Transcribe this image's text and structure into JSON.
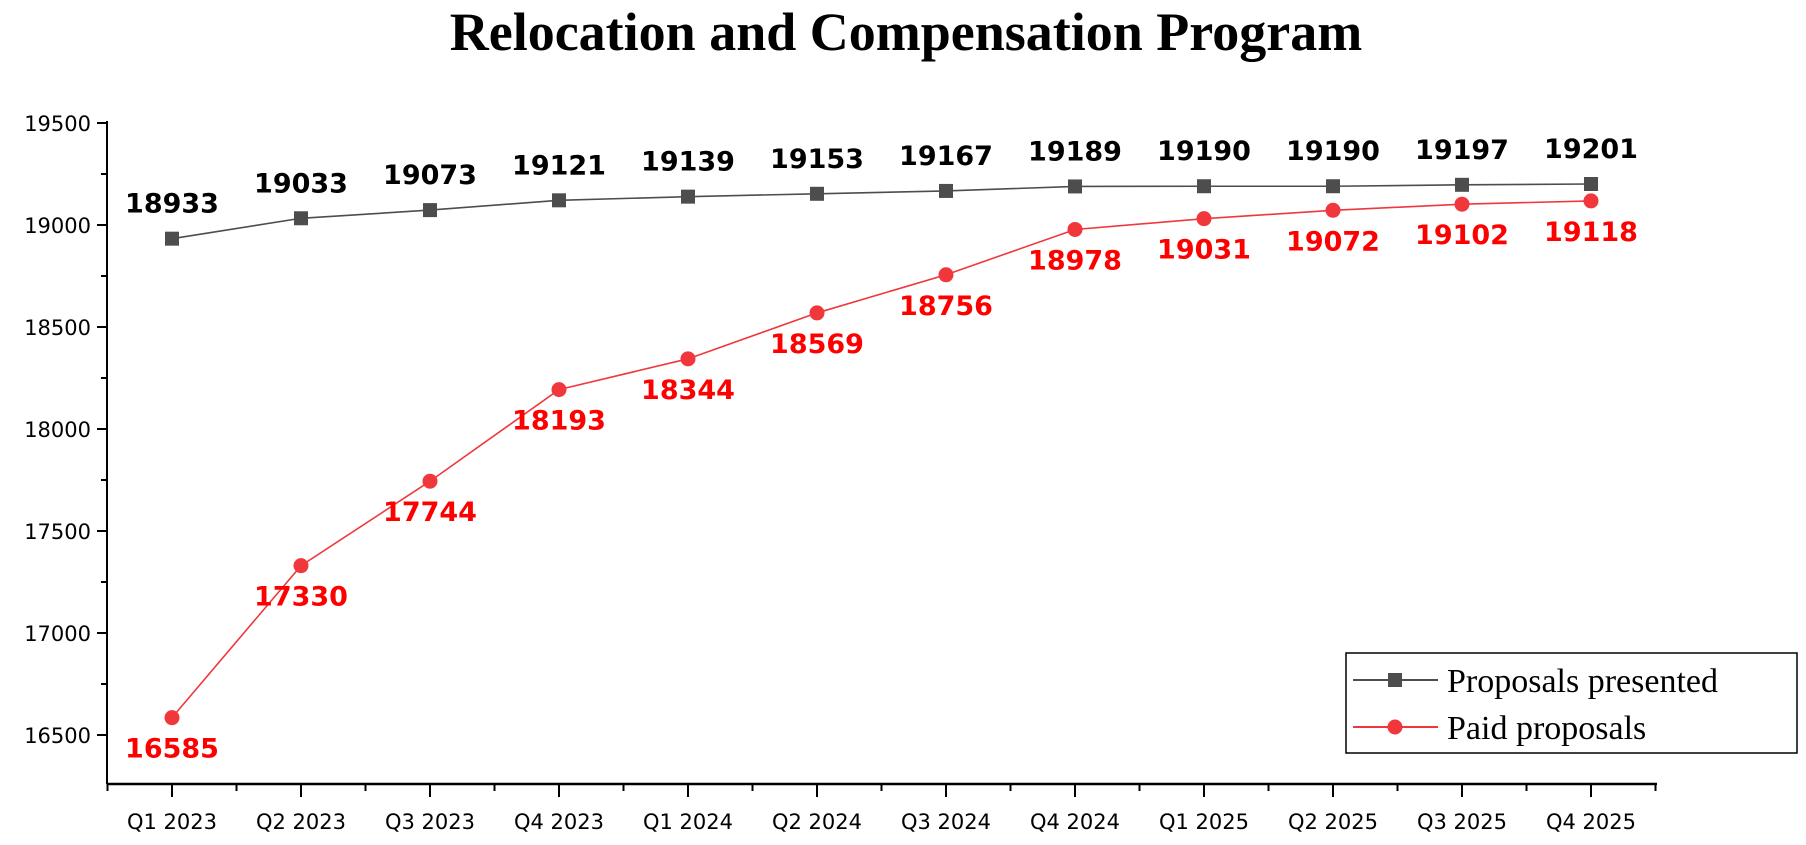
{
  "chart_data": {
    "type": "line",
    "title": "Relocation and Compensation Program",
    "xlabel": "",
    "ylabel": "",
    "categories": [
      "Q1 2023",
      "Q2 2023",
      "Q3 2023",
      "Q4 2023",
      "Q1 2024",
      "Q2 2024",
      "Q3 2024",
      "Q4 2024",
      "Q1 2025",
      "Q2 2025",
      "Q3 2025",
      "Q4 2025"
    ],
    "ylim": [
      16260,
      19500
    ],
    "yticks": [
      16500,
      17000,
      17500,
      18000,
      18500,
      19000,
      19500
    ],
    "grid": false,
    "legend_position": "bottom-right",
    "series": [
      {
        "name": "Proposals presented",
        "color": "#4d4d4d",
        "label_color": "#000000",
        "marker": "square",
        "values": [
          18933,
          19033,
          19073,
          19121,
          19139,
          19153,
          19167,
          19189,
          19190,
          19190,
          19197,
          19201
        ]
      },
      {
        "name": "Paid proposals",
        "color": "#f0373c",
        "label_color": "#ff0000",
        "marker": "circle",
        "values": [
          16585,
          17330,
          17744,
          18193,
          18344,
          18569,
          18756,
          18978,
          19031,
          19072,
          19102,
          19118
        ]
      }
    ]
  }
}
